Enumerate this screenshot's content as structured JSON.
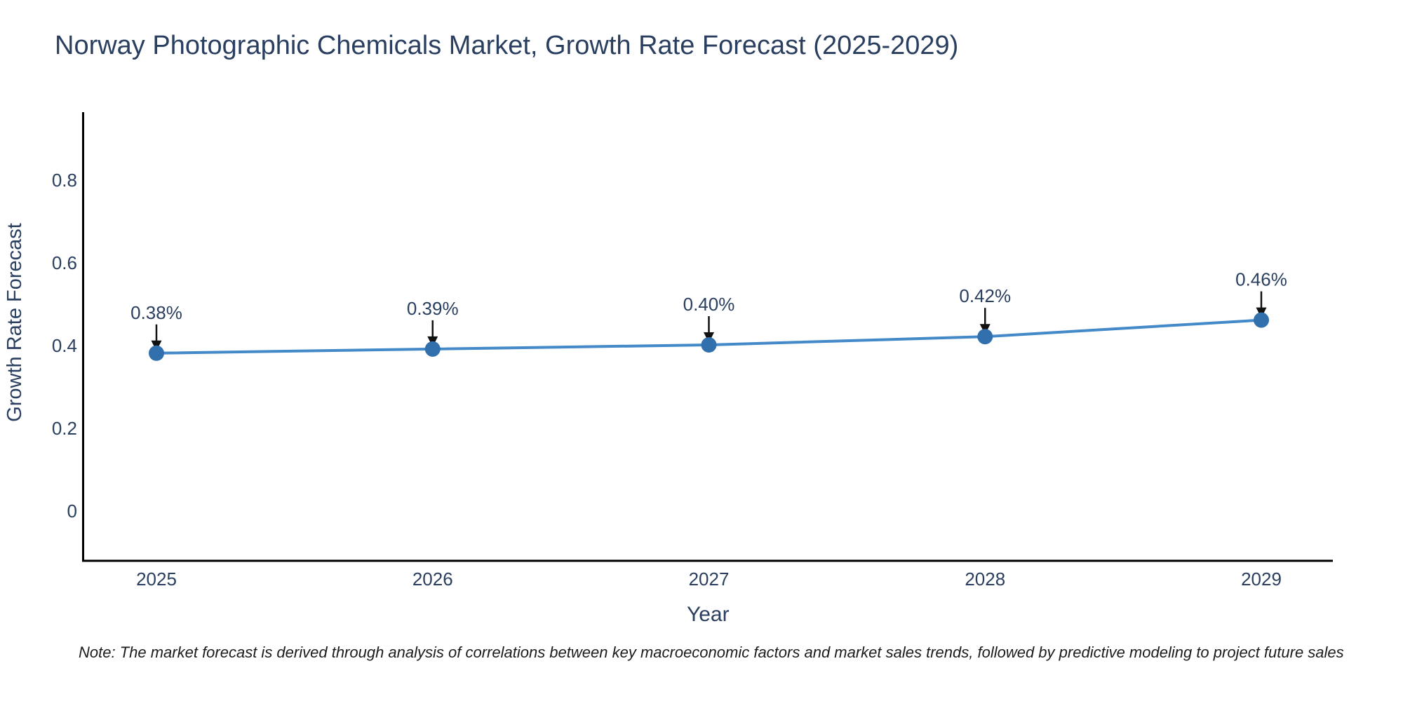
{
  "title": "Norway Photographic Chemicals Market, Growth Rate Forecast (2025-2029)",
  "note": "Note: The market forecast is derived through analysis of correlations between key macroeconomic factors and market sales trends, followed by predictive modeling to project future sales",
  "chart_data": {
    "type": "line",
    "title": "Norway Photographic Chemicals Market, Growth Rate Forecast (2025-2029)",
    "categories": [
      "2025",
      "2026",
      "2027",
      "2028",
      "2029"
    ],
    "series": [
      {
        "name": "Growth Rate Forecast",
        "values": [
          0.38,
          0.39,
          0.4,
          0.42,
          0.46
        ]
      }
    ],
    "point_labels": [
      "0.38%",
      "0.39%",
      "0.40%",
      "0.42%",
      "0.46%"
    ],
    "xlabel": "Year",
    "ylabel": "Growth Rate Forecast",
    "yticks": [
      0,
      0.2,
      0.4,
      0.6,
      0.8
    ],
    "ytick_labels": [
      "0",
      "0.2",
      "0.4",
      "0.6",
      "0.8"
    ],
    "ylim": [
      -0.12,
      0.97
    ],
    "grid": false,
    "legend_position": "none",
    "annotation_style": "value label above point with downward arrow",
    "colors": {
      "line": "#4489c8",
      "marker": "#326fad",
      "axis": "#000000",
      "text": "#2a3f5f",
      "annotation_text": "#2a3f5f",
      "annotation_arrow": "#111111",
      "background": "#ffffff"
    }
  }
}
